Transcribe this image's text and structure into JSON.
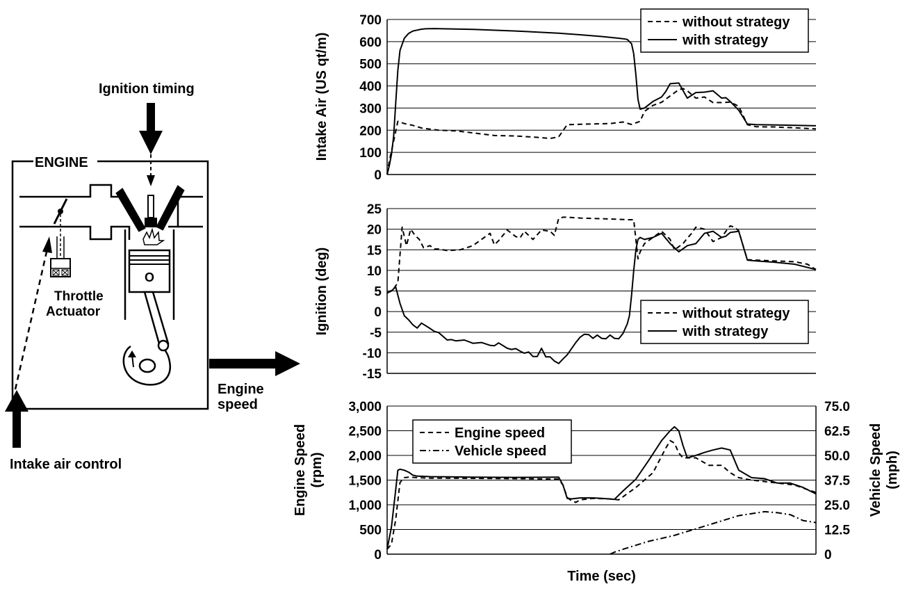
{
  "diagram": {
    "engine_label": "ENGINE",
    "ignition_label": "Ignition timing",
    "throttle_label_1": "Throttle",
    "throttle_label_2": "Actuator",
    "intake_label": "Intake air control",
    "speed_label_1": "Engine",
    "speed_label_2": "speed",
    "piston_mark": "O"
  },
  "chart_data": [
    {
      "type": "line",
      "ylabel": "Intake Air (US qt/m)",
      "ylim": [
        0,
        700
      ],
      "yticks": [
        "0",
        "100",
        "200",
        "300",
        "400",
        "500",
        "600",
        "700"
      ],
      "grid": true,
      "legend_position": "top-right",
      "xlim": [
        0,
        100
      ],
      "series": [
        {
          "name": "without strategy",
          "style": "dashed",
          "x": [
            0,
            0.5,
            1.5,
            2.5,
            4,
            6,
            8,
            12,
            16,
            20,
            25,
            30,
            35,
            38,
            40,
            42,
            47,
            52,
            55,
            57,
            59,
            60,
            62,
            64,
            66,
            68,
            69,
            70,
            72,
            74,
            76,
            78,
            80,
            82,
            84,
            86,
            88,
            90,
            92,
            94,
            96,
            98,
            100
          ],
          "y": [
            0,
            60,
            150,
            240,
            230,
            222,
            210,
            200,
            197,
            188,
            176,
            174,
            168,
            163,
            170,
            225,
            228,
            230,
            237,
            226,
            240,
            285,
            312,
            326,
            355,
            383,
            388,
            378,
            345,
            350,
            325,
            325,
            327,
            308,
            225,
            216,
            215,
            215,
            213,
            212,
            210,
            208,
            206
          ]
        },
        {
          "name": "with strategy",
          "style": "solid",
          "x": [
            0,
            0.5,
            1,
            1.5,
            2,
            2.5,
            3,
            4,
            5,
            6,
            7,
            8,
            9,
            11,
            13,
            20,
            30,
            40,
            45,
            50,
            53,
            55,
            56,
            57,
            57.5,
            58,
            58.5,
            59,
            60,
            62,
            64,
            65,
            66,
            68,
            70,
            72,
            74,
            76,
            78,
            79,
            80,
            82,
            84,
            86,
            90,
            95,
            100
          ],
          "y": [
            0,
            40,
            90,
            170,
            320,
            470,
            560,
            615,
            637,
            648,
            652,
            656,
            658,
            659,
            658,
            655,
            648,
            638,
            631,
            623,
            617,
            613,
            610,
            590,
            545,
            450,
            340,
            295,
            300,
            330,
            350,
            375,
            410,
            413,
            345,
            370,
            372,
            378,
            345,
            347,
            330,
            290,
            228,
            225,
            224,
            222,
            220
          ]
        }
      ]
    },
    {
      "type": "line",
      "ylabel": "Ignition (deg)",
      "ylim": [
        -15,
        25
      ],
      "yticks": [
        "-15",
        "-10",
        "-5",
        "0",
        "5",
        "10",
        "15",
        "20",
        "25"
      ],
      "grid": true,
      "legend_position": "bottom-right",
      "xlim": [
        0,
        100
      ],
      "series": [
        {
          "name": "without strategy",
          "style": "dashed",
          "x": [
            0,
            1.5,
            2.5,
            3.5,
            4.5,
            5.5,
            6.5,
            7.5,
            8.5,
            10,
            11,
            12,
            14,
            17,
            20,
            22,
            24,
            25,
            26,
            28,
            30,
            31,
            32,
            34,
            36,
            38,
            39,
            40,
            41,
            42,
            45,
            48,
            51,
            54,
            56,
            57.5,
            58.5,
            59,
            60,
            62,
            64,
            66,
            67,
            69,
            70,
            71,
            72,
            74,
            76,
            78,
            79,
            80,
            81,
            82,
            83,
            84,
            86,
            90,
            95,
            98,
            100
          ],
          "y": [
            4.5,
            5.5,
            7,
            20.5,
            16,
            20,
            18.5,
            17.5,
            15.5,
            16,
            15.2,
            15.2,
            14.8,
            15,
            16,
            17.5,
            19,
            16.2,
            17.2,
            19.8,
            18.2,
            17.9,
            19.5,
            17.5,
            19.8,
            19.5,
            18.5,
            22.6,
            22.9,
            22.9,
            22.7,
            22.6,
            22.5,
            22.4,
            22.3,
            22.3,
            12.8,
            14.5,
            16.5,
            18,
            19.5,
            17.5,
            15,
            16.5,
            17.8,
            19,
            20.5,
            20,
            17,
            18,
            19.5,
            20.8,
            20.5,
            19.6,
            16,
            12.6,
            12.5,
            12.3,
            12.1,
            11.5,
            10.2
          ]
        },
        {
          "name": "with strategy",
          "style": "solid",
          "x": [
            0,
            1,
            2,
            3,
            4,
            5,
            6,
            6.5,
            7,
            8,
            10,
            11,
            12,
            14,
            15,
            16,
            18,
            20,
            22,
            24,
            25,
            26,
            28,
            29,
            30,
            31,
            32,
            33,
            34,
            35,
            36,
            37,
            38,
            39,
            40,
            41,
            42,
            43,
            44,
            45,
            46,
            47,
            48,
            49,
            50,
            51,
            52,
            53,
            54,
            55,
            56,
            56.5,
            57,
            57.5,
            58,
            58.5,
            59,
            60,
            62,
            64,
            66,
            68,
            70,
            72,
            74,
            76,
            78,
            79,
            80,
            82,
            84,
            86,
            90,
            95,
            100
          ],
          "y": [
            4.5,
            5,
            6,
            2,
            -1,
            -2,
            -3.2,
            -3.6,
            -4,
            -2.8,
            -4.1,
            -4.8,
            -5.1,
            -6.9,
            -6.8,
            -7.1,
            -6.9,
            -7.7,
            -7.5,
            -8.2,
            -8.3,
            -7.6,
            -8.9,
            -9.2,
            -9,
            -9.6,
            -10.1,
            -9.8,
            -10.9,
            -10.9,
            -8.9,
            -11,
            -11,
            -12,
            -12.6,
            -11.5,
            -10.5,
            -9,
            -7.5,
            -6.2,
            -5.5,
            -5.6,
            -6.5,
            -5.7,
            -6.5,
            -6.6,
            -5.7,
            -6.5,
            -6.6,
            -5.3,
            -3,
            -1,
            4,
            10,
            15,
            17.5,
            18,
            17.5,
            18,
            19,
            16.5,
            14.5,
            16,
            16.5,
            19,
            19.5,
            18,
            18.3,
            19.2,
            19.5,
            12.5,
            12.3,
            12,
            11.5,
            10.2
          ]
        }
      ]
    },
    {
      "type": "line",
      "xlabel": "Time (sec)",
      "ylabel": "Engine Speed (rpm)",
      "y2label": "Vehicle Speed (mph)",
      "ylim": [
        0,
        3000
      ],
      "y2lim": [
        0,
        75
      ],
      "yticks": [
        "0",
        "500",
        "1,000",
        "1,500",
        "2,000",
        "2,500",
        "3,000"
      ],
      "y2ticks": [
        "0",
        "12.5",
        "25.0",
        "37.5",
        "50.0",
        "62.5",
        "75.0"
      ],
      "grid": true,
      "legend_position": "top-left",
      "xlim": [
        0,
        100
      ],
      "series": [
        {
          "name": "Engine speed",
          "style": "dashed",
          "axis": "left",
          "x": [
            0,
            1,
            2,
            3,
            4,
            5,
            7,
            10,
            20,
            30,
            40,
            41,
            42,
            43,
            44,
            45,
            48,
            52,
            54,
            58,
            62,
            65,
            66,
            67,
            68,
            69,
            70,
            72,
            75,
            78,
            80,
            82,
            85,
            90,
            95,
            100
          ],
          "y": [
            100,
            200,
            700,
            1450,
            1550,
            1560,
            1550,
            1540,
            1535,
            1530,
            1520,
            1400,
            1150,
            1080,
            1050,
            1100,
            1130,
            1120,
            1100,
            1350,
            1650,
            2150,
            2300,
            2250,
            2050,
            1950,
            1950,
            1950,
            1800,
            1800,
            1650,
            1550,
            1500,
            1450,
            1400,
            1250
          ]
        },
        {
          "name": "Vehicle speed",
          "style": "dashdot",
          "axis": "right",
          "x": [
            52,
            53,
            55,
            58,
            61,
            64,
            67,
            70,
            73,
            76,
            79,
            82,
            85,
            88,
            91,
            94,
            97,
            100
          ],
          "y": [
            0,
            1,
            2.5,
            4.5,
            6.5,
            8,
            9.5,
            11.5,
            13.5,
            15.5,
            17.5,
            19.5,
            20.5,
            21.5,
            21,
            20,
            17,
            16
          ]
        },
        {
          "name": "",
          "style": "solid",
          "axis": "left",
          "x": [
            0,
            1,
            2,
            2.5,
            3,
            4,
            5,
            6,
            7,
            10,
            20,
            30,
            40,
            41,
            42,
            43,
            45,
            48,
            50,
            53,
            55,
            58,
            61,
            64,
            66,
            67,
            68,
            69,
            70,
            72,
            74,
            76,
            78,
            80,
            82,
            85,
            88,
            91,
            94,
            97,
            100
          ],
          "y": [
            100,
            550,
            1300,
            1700,
            1720,
            1700,
            1660,
            1600,
            1580,
            1570,
            1560,
            1555,
            1560,
            1400,
            1130,
            1120,
            1140,
            1140,
            1130,
            1110,
            1280,
            1520,
            1900,
            2300,
            2500,
            2580,
            2500,
            2200,
            1950,
            2000,
            2060,
            2110,
            2150,
            2110,
            1700,
            1550,
            1530,
            1440,
            1440,
            1350,
            1220
          ]
        }
      ]
    }
  ]
}
